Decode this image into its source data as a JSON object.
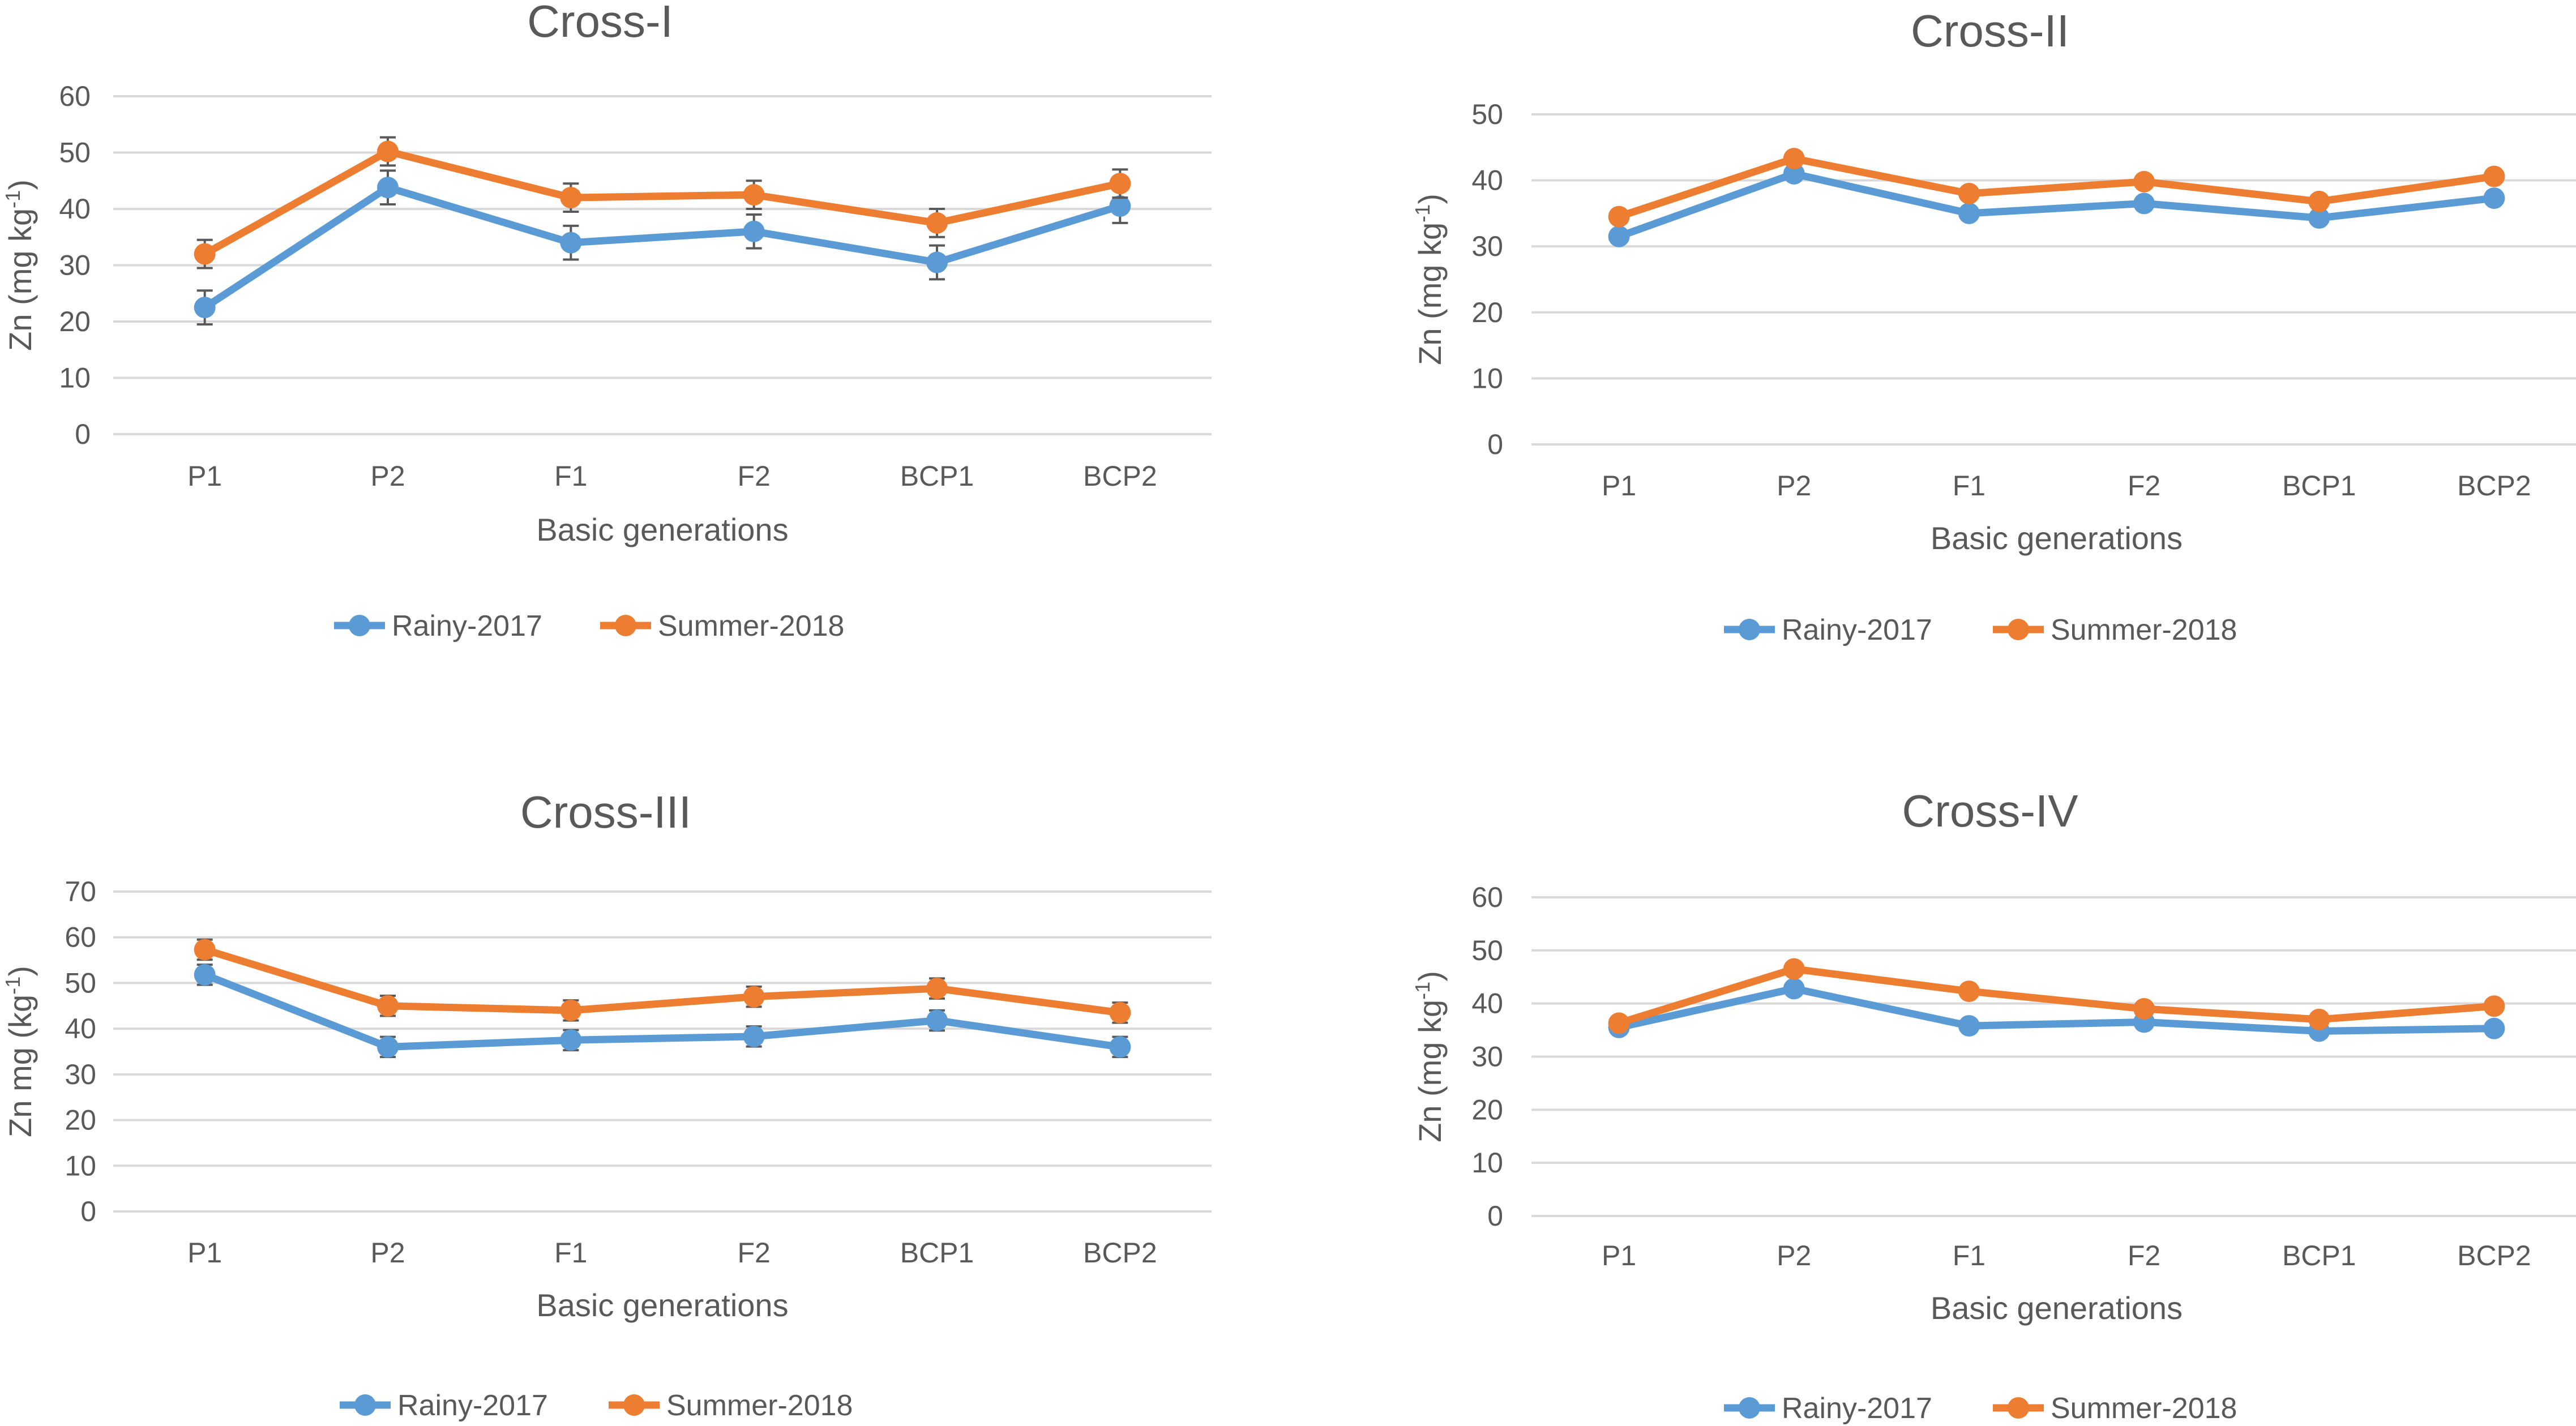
{
  "chart_data": [
    {
      "type": "line",
      "title": "Cross-I",
      "xlabel": "Basic generations",
      "ylabel": "Zn (mg kg-1)",
      "ylim": [
        0,
        60
      ],
      "yticks": [
        0,
        10,
        20,
        30,
        40,
        50,
        60
      ],
      "categories": [
        "P1",
        "P2",
        "F1",
        "F2",
        "BCP1",
        "BCP2"
      ],
      "error_bars": true,
      "series": [
        {
          "name": "Rainy-2017",
          "color": "#5b9bd5",
          "values": [
            22.5,
            43.8,
            34.0,
            36.0,
            30.5,
            40.5
          ],
          "errors": [
            3.0,
            3.0,
            3.0,
            3.0,
            3.0,
            3.0
          ]
        },
        {
          "name": "Summer-2018",
          "color": "#ed7d31",
          "values": [
            32.0,
            50.2,
            42.0,
            42.5,
            37.5,
            44.5
          ],
          "errors": [
            2.5,
            2.5,
            2.5,
            2.5,
            2.5,
            2.5
          ]
        }
      ]
    },
    {
      "type": "line",
      "title": "Cross-II",
      "xlabel": "Basic generations",
      "ylabel": "Zn (mg kg-1)",
      "ylim": [
        0,
        50
      ],
      "yticks": [
        0,
        10,
        20,
        30,
        40,
        50
      ],
      "categories": [
        "P1",
        "P2",
        "F1",
        "F2",
        "BCP1",
        "BCP2"
      ],
      "error_bars": true,
      "series": [
        {
          "name": "Rainy-2017",
          "color": "#5b9bd5",
          "values": [
            31.5,
            41.0,
            35.0,
            36.5,
            34.3,
            37.3
          ],
          "errors": [
            0.8,
            0.8,
            0.8,
            0.8,
            0.8,
            0.8
          ]
        },
        {
          "name": "Summer-2018",
          "color": "#ed7d31",
          "values": [
            34.5,
            43.3,
            38.0,
            39.8,
            36.8,
            40.6
          ],
          "errors": [
            0.8,
            0.8,
            0.8,
            0.8,
            0.8,
            0.8
          ]
        }
      ]
    },
    {
      "type": "line",
      "title": "Cross-III",
      "xlabel": "Basic generations",
      "ylabel": "Zn mg (kg-1)",
      "ylim": [
        0,
        70
      ],
      "yticks": [
        0,
        10,
        20,
        30,
        40,
        50,
        60,
        70
      ],
      "categories": [
        "P1",
        "P2",
        "F1",
        "F2",
        "BCP1",
        "BCP2"
      ],
      "error_bars": true,
      "series": [
        {
          "name": "Rainy-2017",
          "color": "#5b9bd5",
          "values": [
            51.8,
            36.0,
            37.5,
            38.3,
            41.8,
            36.0
          ],
          "errors": [
            2.2,
            2.2,
            2.2,
            2.2,
            2.2,
            2.2
          ]
        },
        {
          "name": "Summer-2018",
          "color": "#ed7d31",
          "values": [
            57.3,
            45.0,
            44.0,
            47.0,
            48.8,
            43.5
          ],
          "errors": [
            2.2,
            2.2,
            2.2,
            2.2,
            2.2,
            2.2
          ]
        }
      ]
    },
    {
      "type": "line",
      "title": "Cross-IV",
      "xlabel": "Basic generations",
      "ylabel": "Zn (mg kg-1)",
      "ylim": [
        0,
        60
      ],
      "yticks": [
        0,
        10,
        20,
        30,
        40,
        50,
        60
      ],
      "categories": [
        "P1",
        "P2",
        "F1",
        "F2",
        "BCP1",
        "BCP2"
      ],
      "error_bars": true,
      "series": [
        {
          "name": "Rainy-2017",
          "color": "#5b9bd5",
          "values": [
            35.5,
            42.8,
            35.8,
            36.5,
            34.8,
            35.3
          ],
          "errors": [
            1.0,
            1.0,
            1.0,
            1.0,
            1.0,
            1.0
          ]
        },
        {
          "name": "Summer-2018",
          "color": "#ed7d31",
          "values": [
            36.3,
            46.5,
            42.3,
            39.0,
            37.0,
            39.5
          ],
          "errors": [
            1.0,
            1.0,
            1.0,
            1.0,
            1.0,
            1.0
          ]
        }
      ]
    }
  ]
}
